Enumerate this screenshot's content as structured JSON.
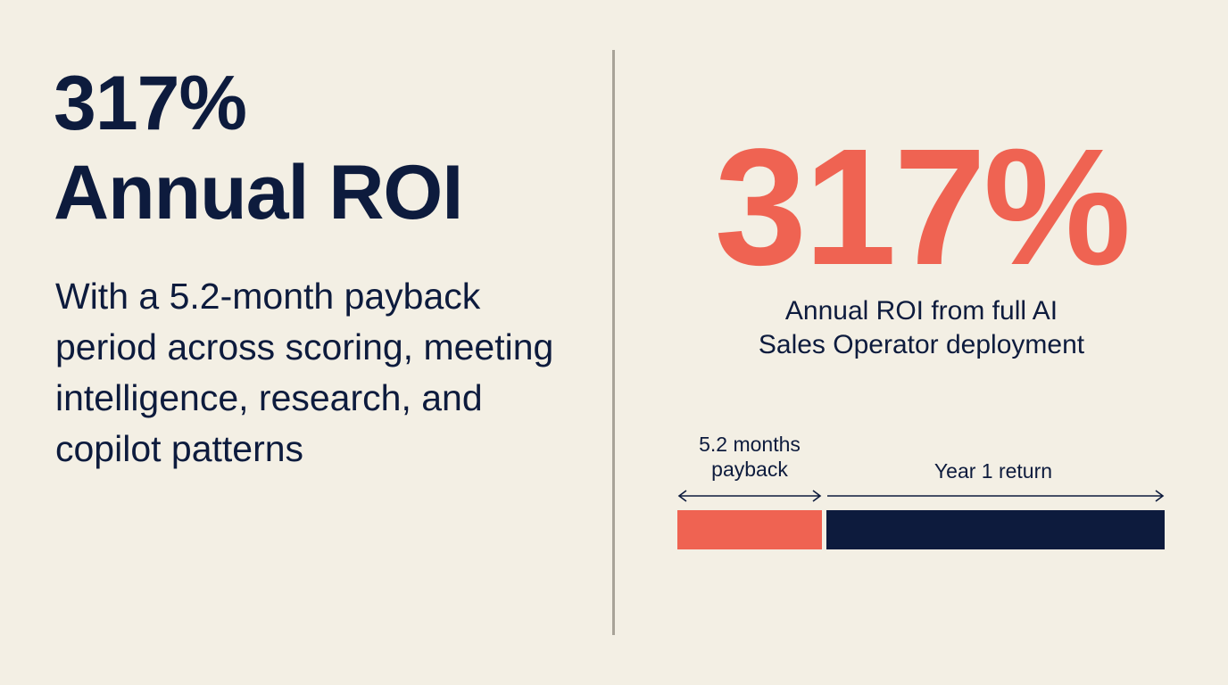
{
  "colors": {
    "background": "#f3efe4",
    "navy": "#0d1b3d",
    "coral": "#ef6352",
    "divider": "#a8a398"
  },
  "left": {
    "headline_line1": "317%",
    "headline_line2": "Annual ROI",
    "subtext": "With a 5.2-month payback period across scoring, meeting intelligence, research, and copilot patterns"
  },
  "right": {
    "big_stat": "317%",
    "caption_line1": "Annual ROI from full AI",
    "caption_line2": "Sales Operator deployment"
  },
  "timeline": {
    "payback_label_line1": "5.2 months",
    "payback_label_line2": "payback",
    "year_label": "Year 1 return",
    "payback_months": 5.2,
    "total_months": 12,
    "icons": [
      "double-arrow-icon",
      "right-arrow-icon"
    ]
  }
}
